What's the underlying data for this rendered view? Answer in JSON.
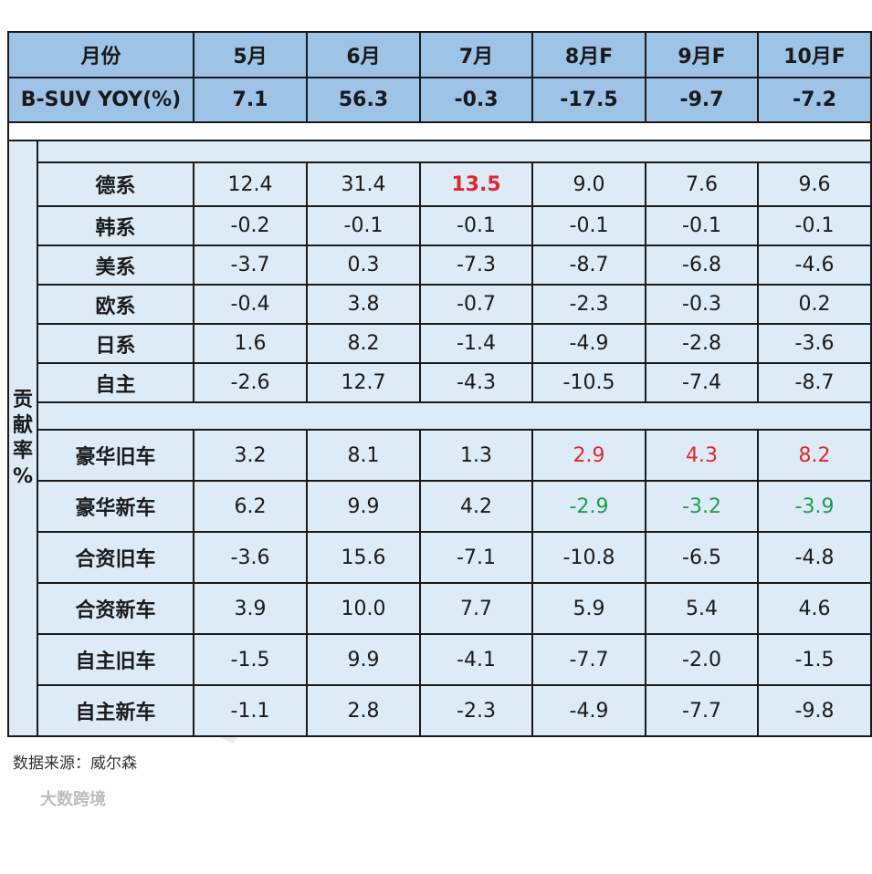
{
  "header": {
    "month_label": "月份",
    "months": [
      "5月",
      "6月",
      "7月",
      "8月F",
      "9月F",
      "10月F"
    ],
    "yoy_label": "B-SUV YOY(%)",
    "yoy_values": [
      "7.1",
      "56.3",
      "-0.3",
      "-17.5",
      "-9.7",
      "-7.2"
    ]
  },
  "side_label": "贡献率%",
  "group1": [
    {
      "label": "德系",
      "values": [
        "12.4",
        "31.4",
        "13.5",
        "9.0",
        "7.6",
        "9.6"
      ]
    },
    {
      "label": "韩系",
      "values": [
        "-0.2",
        "-0.1",
        "-0.1",
        "-0.1",
        "-0.1",
        "-0.1"
      ]
    },
    {
      "label": "美系",
      "values": [
        "-3.7",
        "0.3",
        "-7.3",
        "-8.7",
        "-6.8",
        "-4.6"
      ]
    },
    {
      "label": "欧系",
      "values": [
        "-0.4",
        "3.8",
        "-0.7",
        "-2.3",
        "-0.3",
        "0.2"
      ]
    },
    {
      "label": "日系",
      "values": [
        "1.6",
        "8.2",
        "-1.4",
        "-4.9",
        "-2.8",
        "-3.6"
      ]
    },
    {
      "label": "自主",
      "values": [
        "-2.6",
        "12.7",
        "-4.3",
        "-10.5",
        "-7.4",
        "-8.7"
      ]
    }
  ],
  "group2": [
    {
      "label": "豪华旧车",
      "values": [
        "3.2",
        "8.1",
        "1.3",
        "2.9",
        "4.3",
        "8.2"
      ]
    },
    {
      "label": "豪华新车",
      "values": [
        "6.2",
        "9.9",
        "4.2",
        "-2.9",
        "-3.2",
        "-3.9"
      ]
    },
    {
      "label": "合资旧车",
      "values": [
        "-3.6",
        "15.6",
        "-7.1",
        "-10.8",
        "-6.5",
        "-4.8"
      ]
    },
    {
      "label": "合资新车",
      "values": [
        "3.9",
        "10.0",
        "7.7",
        "5.9",
        "5.4",
        "4.6"
      ]
    },
    {
      "label": "自主旧车",
      "values": [
        "-1.5",
        "9.9",
        "-4.1",
        "-7.7",
        "-2.0",
        "-1.5"
      ]
    },
    {
      "label": "自主新车",
      "values": [
        "-1.1",
        "2.8",
        "-2.3",
        "-4.9",
        "-7.7",
        "-9.8"
      ]
    }
  ],
  "highlight_colors": {
    "red": "#e3262c",
    "green": "#1e9d4a"
  },
  "source": "数据来源：威尔森",
  "logo_text": "大数跨境",
  "watermark": "www.way-s.cn"
}
